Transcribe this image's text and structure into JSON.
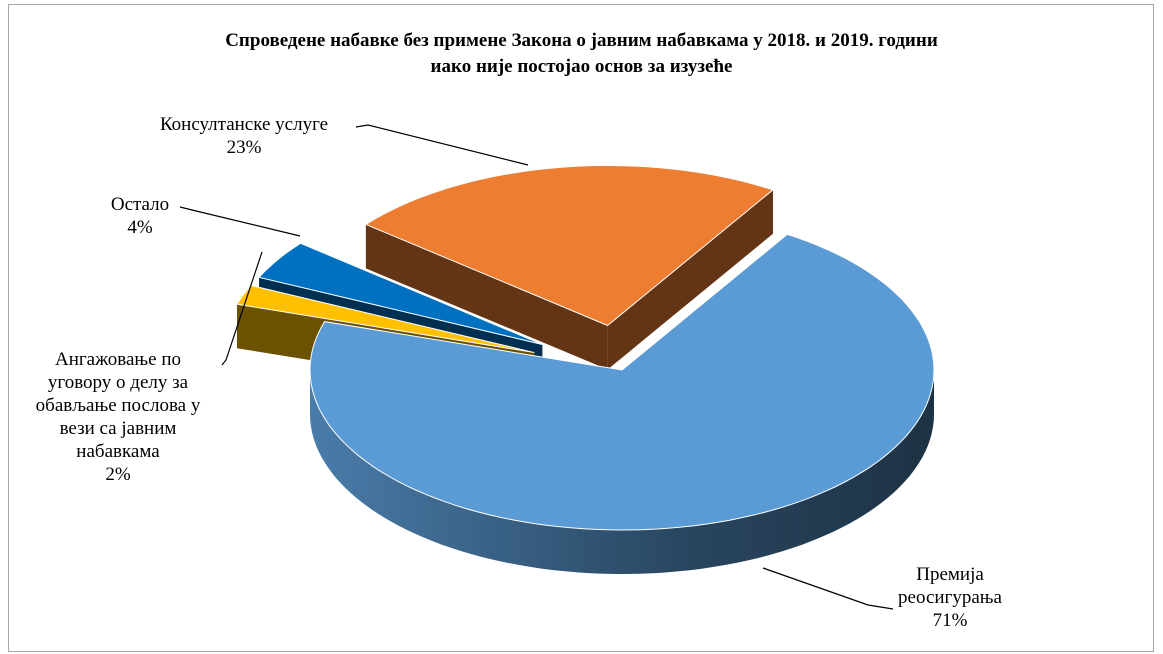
{
  "chart_data": {
    "type": "pie",
    "title": "Спроведене набавке без примене Закона о јавним набавкама у 2018. и 2019. години иако није постојао основ за изузеће",
    "title_lines": [
      "Спроведене набавке без примене Закона о јавним набавкама у 2018. и 2019. години",
      "иако није постојао основ за изузеће"
    ],
    "three_d": true,
    "exploded": true,
    "slices": [
      {
        "label_lines": [
          "Премија",
          "реосигурања"
        ],
        "label": "Премија реосигурања",
        "value": 71,
        "percent": "71%",
        "color": "#5b9bd5"
      },
      {
        "label_lines": [
          "Ангажовање по",
          "уговору о делу за",
          "обављање послова у",
          "вези са јавним",
          "набавкама"
        ],
        "label": "Ангажовање по уговору о делу за обављање послова у вези са јавним набавкама",
        "value": 2,
        "percent": "2%",
        "color": "#ffc000"
      },
      {
        "label_lines": [
          "Остало"
        ],
        "label": "Остало",
        "value": 4,
        "percent": "4%",
        "color": "#0070c0"
      },
      {
        "label_lines": [
          "Консултанске услуге"
        ],
        "label": "Консултанске услуге",
        "value": 23,
        "percent": "23%",
        "color": "#ed7d31"
      }
    ]
  }
}
